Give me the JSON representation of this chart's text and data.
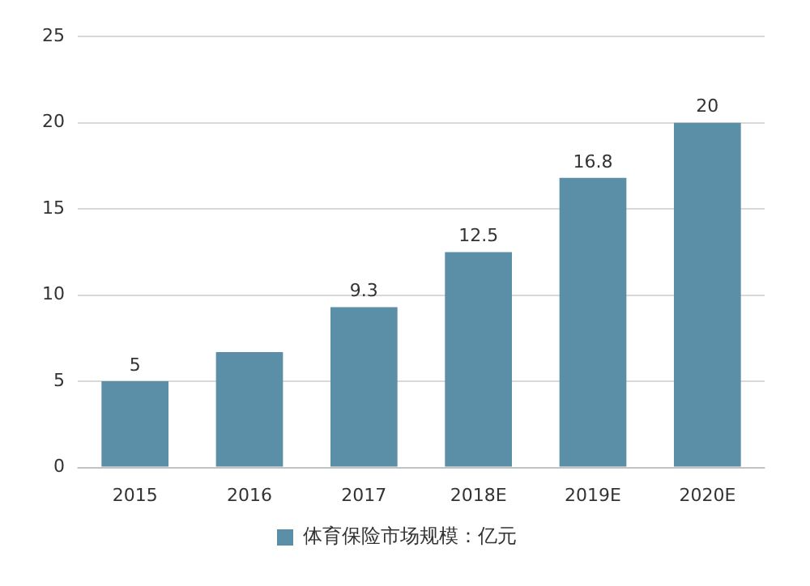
{
  "chart_data": {
    "type": "bar",
    "categories": [
      "2015",
      "2016",
      "2017",
      "2018E",
      "2019E",
      "2020E"
    ],
    "series": [
      {
        "name": "体育保险市场规模：亿元",
        "color": "#5b8fa8",
        "values": [
          5,
          6.7,
          9.3,
          12.5,
          16.8,
          20
        ],
        "value_labels": [
          "5",
          null,
          "9.3",
          "12.5",
          "16.8",
          "20"
        ]
      }
    ],
    "ylim": [
      0,
      25
    ],
    "yticks": [
      0,
      5,
      10,
      15,
      20,
      25
    ],
    "grid": "y",
    "legend": "bottom"
  }
}
